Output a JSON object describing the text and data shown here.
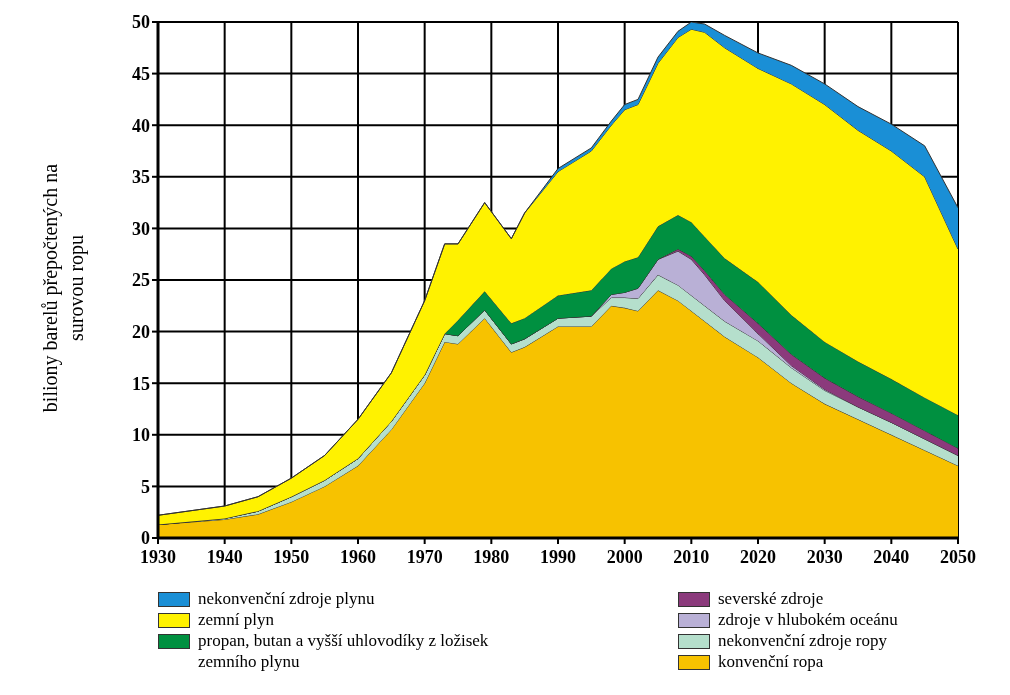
{
  "chart_data": {
    "type": "area",
    "stacked": true,
    "ylabel": "biliony barelů přepočtených na surovou ropu",
    "x": [
      1930,
      1940,
      1945,
      1950,
      1955,
      1960,
      1965,
      1970,
      1973,
      1975,
      1979,
      1983,
      1985,
      1990,
      1995,
      1998,
      2000,
      2002,
      2005,
      2008,
      2010,
      2012,
      2015,
      2020,
      2025,
      2030,
      2035,
      2040,
      2045,
      2050
    ],
    "xlim": [
      1930,
      2050
    ],
    "xticks": [
      1930,
      1940,
      1950,
      1960,
      1970,
      1980,
      1990,
      2000,
      2010,
      2020,
      2030,
      2040,
      2050
    ],
    "ylim": [
      0,
      50
    ],
    "yticks": [
      0,
      5,
      10,
      15,
      20,
      25,
      30,
      35,
      40,
      45,
      50
    ],
    "grid": true,
    "legend": "bottom",
    "series": [
      {
        "name": "konvenční ropa",
        "color": "#f7c200",
        "values": [
          1.3,
          1.8,
          2.3,
          3.5,
          5,
          7,
          10.5,
          15,
          19,
          18.8,
          21.3,
          18,
          18.5,
          20.5,
          20.5,
          22.5,
          22.3,
          22,
          24,
          23,
          22,
          21,
          19.5,
          17.5,
          15,
          13,
          11.5,
          10,
          8.5,
          7
        ]
      },
      {
        "name": "nekonvenční zdroje ropy",
        "color": "#b5dfcc",
        "values": [
          0,
          0.1,
          0.3,
          0.5,
          0.6,
          0.7,
          0.8,
          0.8,
          0.8,
          0.8,
          0.8,
          0.8,
          0.8,
          0.8,
          1,
          0.8,
          1,
          1.2,
          1.5,
          1.5,
          1.5,
          1.5,
          1.5,
          1.6,
          1.5,
          1.3,
          1.2,
          1.2,
          1.1,
          1
        ]
      },
      {
        "name": "zdroje v hlubokém oceánu",
        "color": "#b9b0d6",
        "values": [
          0,
          0,
          0,
          0,
          0,
          0,
          0,
          0,
          0,
          0,
          0,
          0,
          0,
          0,
          0,
          0.3,
          0.5,
          1,
          1.5,
          3.3,
          3.5,
          3,
          2,
          0.7,
          0.2,
          0.1,
          0,
          0,
          0,
          0
        ]
      },
      {
        "name": "severské zdroje",
        "color": "#8b3a7c",
        "values": [
          0,
          0,
          0,
          0,
          0,
          0,
          0,
          0,
          0,
          0,
          0,
          0,
          0,
          0,
          0,
          0,
          0,
          0,
          0,
          0.2,
          0.3,
          0.4,
          0.6,
          1,
          1.1,
          1.1,
          1,
          0.9,
          0.8,
          0.7
        ]
      },
      {
        "name": "propan, butan a vyšší uhlovodíky z ložisek zemního plynu",
        "color": "#009040",
        "values": [
          0,
          0,
          0,
          0,
          0,
          0,
          0,
          0,
          0,
          1.5,
          1.8,
          2,
          2,
          2.2,
          2.5,
          2.5,
          3,
          3,
          3.2,
          3.3,
          3.3,
          3.3,
          3.5,
          4,
          3.8,
          3.5,
          3.4,
          3.3,
          3.2,
          3.2
        ]
      },
      {
        "name": "zemní plyn",
        "color": "#fff200",
        "values": [
          0.9,
          1.2,
          1.4,
          1.8,
          2.4,
          3.8,
          4.7,
          7.2,
          8.7,
          7.4,
          8.6,
          8.2,
          10.2,
          12,
          13.5,
          13.9,
          14.7,
          14.8,
          15.8,
          17.2,
          18.7,
          19.8,
          20.4,
          20.7,
          22.4,
          23,
          22.4,
          22.1,
          21.4,
          16.1
        ]
      },
      {
        "name": "nekonvenční zdroje plynu",
        "color": "#1a8fd6",
        "values": [
          0,
          0,
          0,
          0,
          0,
          0,
          0,
          0,
          0,
          0,
          0,
          0,
          0,
          0.3,
          0.3,
          0.4,
          0.5,
          0.5,
          0.6,
          0.6,
          0.7,
          0.8,
          1.2,
          1.5,
          1.8,
          2,
          2.3,
          2.6,
          3,
          4
        ]
      }
    ]
  }
}
